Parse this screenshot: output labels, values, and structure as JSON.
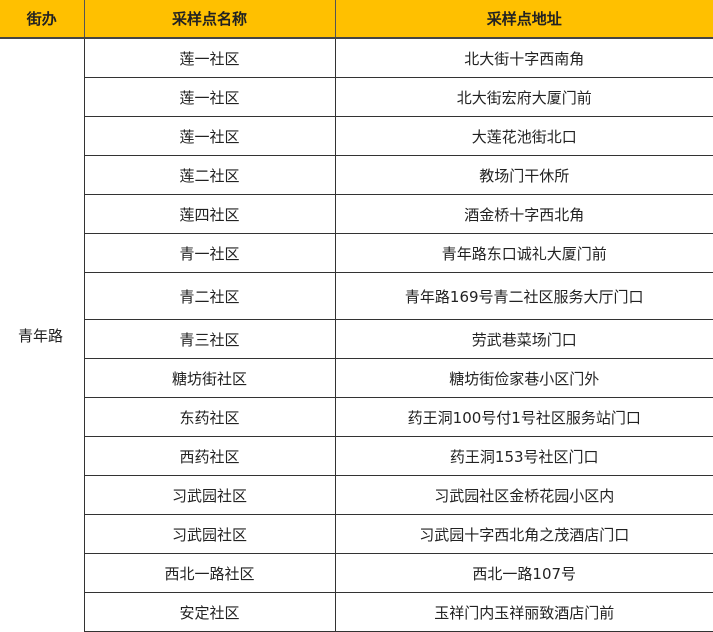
{
  "header": {
    "district": "街办",
    "site_name": "采样点名称",
    "site_address": "采样点地址"
  },
  "district": "青年路",
  "colors": {
    "header_bg": "#FFC000"
  },
  "rows": [
    {
      "name": "莲一社区",
      "address": "北大街十字西南角"
    },
    {
      "name": "莲一社区",
      "address": "北大街宏府大厦门前"
    },
    {
      "name": "莲一社区",
      "address": "大莲花池街北口"
    },
    {
      "name": "莲二社区",
      "address": "教场门干休所"
    },
    {
      "name": "莲四社区",
      "address": "酒金桥十字西北角"
    },
    {
      "name": "青一社区",
      "address": "青年路东口诚礼大厦门前"
    },
    {
      "name": "青二社区",
      "address": "青年路169号青二社区服务大厅门口"
    },
    {
      "name": "青三社区",
      "address": "劳武巷菜场门口"
    },
    {
      "name": "糖坊街社区",
      "address": "糖坊街俭家巷小区门外"
    },
    {
      "name": "东药社区",
      "address": "药王洞100号付1号社区服务站门口"
    },
    {
      "name": "西药社区",
      "address": "药王洞153号社区门口"
    },
    {
      "name": "习武园社区",
      "address": "习武园社区金桥花园小区内"
    },
    {
      "name": "习武园社区",
      "address": "习武园十字西北角之茂酒店门口"
    },
    {
      "name": "西北一路社区",
      "address": "西北一路107号"
    },
    {
      "name": "安定社区",
      "address": "玉祥门内玉祥丽致酒店门前"
    }
  ]
}
